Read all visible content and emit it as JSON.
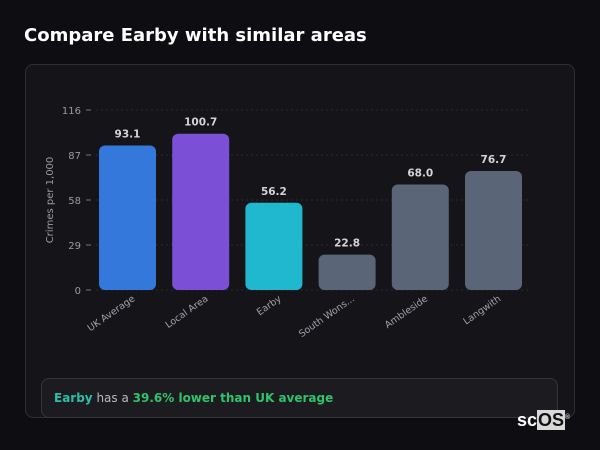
{
  "header": {
    "title": "Compare Earby with similar areas"
  },
  "chart_data": {
    "type": "bar",
    "title": "",
    "xlabel": "",
    "ylabel": "Crimes per 1,000",
    "ylim": [
      0,
      116
    ],
    "yticks": [
      0,
      29,
      58,
      87,
      116
    ],
    "grid": true,
    "categories": [
      "UK Average",
      "Local Area",
      "Earby",
      "South Wons...",
      "Ambleside",
      "Langwith"
    ],
    "values": [
      93.1,
      100.7,
      56.2,
      22.8,
      68.0,
      76.7
    ],
    "value_labels": [
      "93.1",
      "100.7",
      "56.2",
      "22.8",
      "68.0",
      "76.7"
    ],
    "colors": [
      "#3578db",
      "#7b4fd6",
      "#20b8cf",
      "#5b6578",
      "#5b6578",
      "#5b6578"
    ]
  },
  "summary": {
    "place": "Earby",
    "middle": " has a ",
    "highlight": "39.6% lower than UK average"
  },
  "logo": {
    "text_a": "sc",
    "text_b": "OS",
    "mark": "®"
  }
}
